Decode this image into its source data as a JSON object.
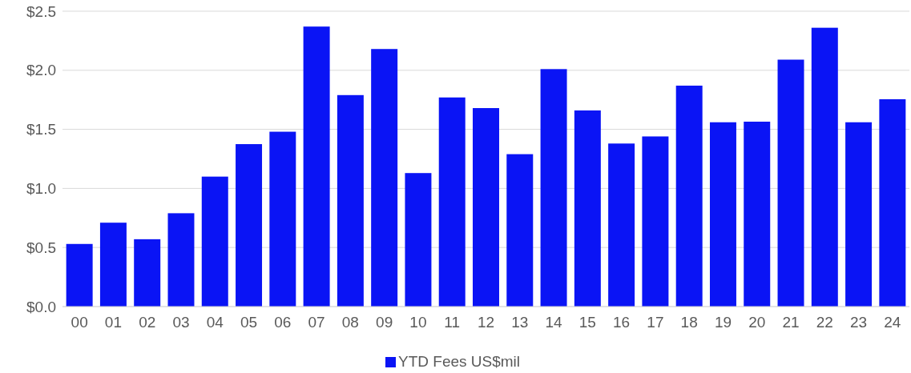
{
  "chart_data": {
    "type": "bar",
    "categories": [
      "00",
      "01",
      "02",
      "03",
      "04",
      "05",
      "06",
      "07",
      "08",
      "09",
      "10",
      "11",
      "12",
      "13",
      "14",
      "15",
      "16",
      "17",
      "18",
      "19",
      "20",
      "21",
      "22",
      "23",
      "24"
    ],
    "series": [
      {
        "name": "YTD Fees US$mil",
        "color": "#0a14f5",
        "values": [
          0.53,
          0.71,
          0.57,
          0.79,
          1.1,
          1.375,
          1.48,
          2.37,
          1.79,
          2.18,
          1.13,
          1.77,
          1.68,
          1.29,
          2.01,
          1.66,
          1.38,
          1.44,
          1.87,
          1.56,
          1.565,
          2.09,
          2.36,
          1.56,
          1.755
        ]
      }
    ],
    "ylim": [
      0,
      2.5
    ],
    "yticks": [
      {
        "value": 0,
        "label": "$0.0"
      },
      {
        "value": 0.5,
        "label": "$0.5"
      },
      {
        "value": 1,
        "label": "$1.0"
      },
      {
        "value": 1.5,
        "label": "$1.5"
      },
      {
        "value": 2,
        "label": "$2.0"
      },
      {
        "value": 2.5,
        "label": "$2.5"
      }
    ],
    "grid": "y",
    "legend": "bottom"
  }
}
